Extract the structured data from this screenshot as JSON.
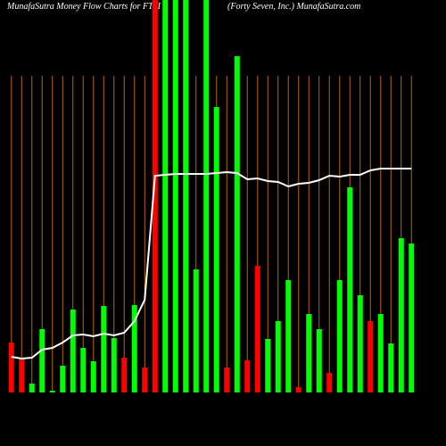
{
  "chart_data": {
    "type": "bar",
    "title": "MunafaSutra  Money Flow  Charts for FTSI",
    "subtitle": "(Forty Seven,  Inc.) MunafaSutra.com",
    "categories": [
      null,
      null,
      null,
      null,
      null,
      null,
      null,
      null,
      null,
      null,
      null,
      null,
      null,
      null,
      null,
      null,
      null,
      null,
      null,
      null,
      null,
      null,
      null,
      null,
      null,
      null,
      null,
      null,
      null,
      null,
      null,
      null,
      null,
      null,
      null,
      null,
      null,
      null,
      null,
      null
    ],
    "values": [
      56,
      38,
      10,
      71,
      2,
      30,
      93,
      50,
      35,
      97,
      61,
      39,
      98,
      28,
      440,
      440,
      440,
      440,
      138,
      440,
      320,
      28,
      377,
      36,
      142,
      60,
      80,
      126,
      6,
      88,
      71,
      22,
      126,
      230,
      109,
      80,
      88,
      55,
      173,
      167
    ],
    "colors": [
      "#ff0000",
      "#ff0000",
      "#00ff00",
      "#00ff00",
      "#00ff00",
      "#00ff00",
      "#00ff00",
      "#00ff00",
      "#00ff00",
      "#00ff00",
      "#00ff00",
      "#ff0000",
      "#00ff00",
      "#ff0000",
      "#ff0000",
      "#00ff00",
      "#00ff00",
      "#00ff00",
      "#00ff00",
      "#00ff00",
      "#00ff00",
      "#ff0000",
      "#00ff00",
      "#ff0000",
      "#ff0000",
      "#00ff00",
      "#00ff00",
      "#00ff00",
      "#ff0000",
      "#00ff00",
      "#00ff00",
      "#ff0000",
      "#00ff00",
      "#00ff00",
      "#00ff00",
      "#ff0000",
      "#00ff00",
      "#00ff00",
      "#00ff00",
      "#00ff00"
    ],
    "line_values": [
      40,
      38,
      39,
      48,
      50,
      56,
      64,
      65,
      63,
      66,
      64,
      67,
      80,
      104,
      243,
      244,
      245,
      245,
      245,
      245,
      246,
      247,
      246,
      239,
      240,
      237,
      236,
      231,
      234,
      235,
      238,
      243,
      242,
      244,
      244,
      249,
      251,
      251,
      251,
      251
    ],
    "line_color": "#ffffff",
    "ylim": [
      0,
      440
    ]
  }
}
